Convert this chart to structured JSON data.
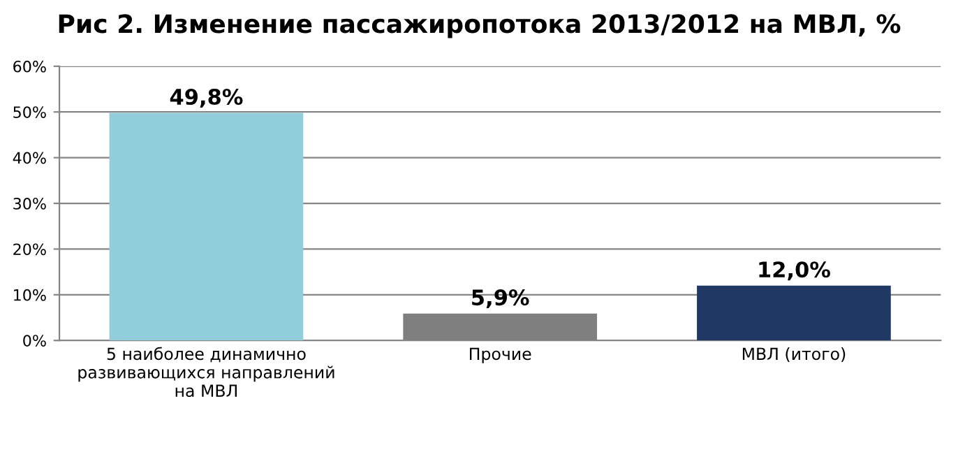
{
  "chart_data": {
    "type": "bar",
    "title": "Рис 2. Изменение пассажиропотока 2013/2012 на МВЛ, %",
    "categories": [
      "5 наиболее динамично\nразвивающихся направлений\nна МВЛ",
      "Прочие",
      "МВЛ (итого)"
    ],
    "values": [
      49.8,
      5.9,
      12.0
    ],
    "colors": [
      "#92cddc",
      "#7f7f7f",
      "#1f3864"
    ],
    "value_labels": [
      "49,8%",
      "5,9%",
      "12,0%"
    ],
    "ylim": [
      0,
      60
    ],
    "yticks": [
      {
        "value": 0,
        "label": "0%"
      },
      {
        "value": 10,
        "label": "10%"
      },
      {
        "value": 20,
        "label": "20%"
      },
      {
        "value": 30,
        "label": "30%"
      },
      {
        "value": 40,
        "label": "40%"
      },
      {
        "value": 50,
        "label": "50%"
      },
      {
        "value": 60,
        "label": "60%"
      }
    ],
    "grid": "y",
    "legend": false
  }
}
